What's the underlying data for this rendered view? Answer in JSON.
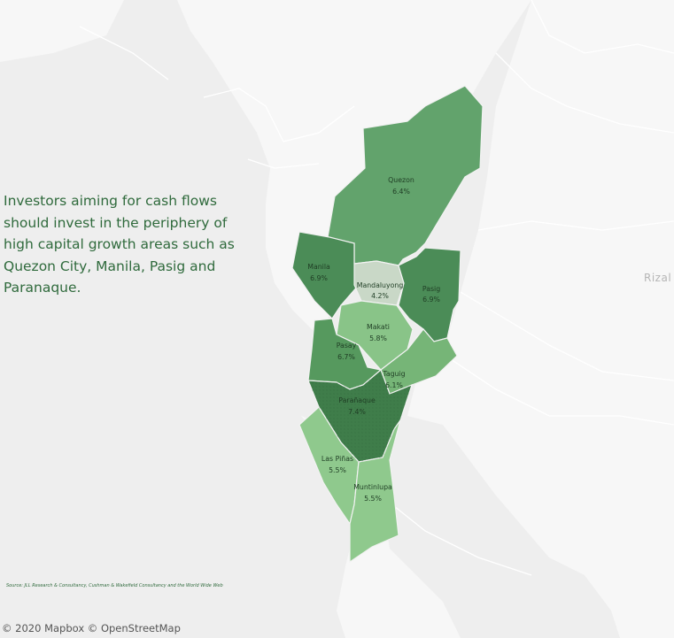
{
  "headline": [
    "Investors aiming for cash flows",
    "should invest in the periphery of",
    "high capital  growth areas such as",
    "Quezon City, Manila, Pasig and",
    "Paranaque."
  ],
  "source": "Source: JLL Research & Consultancy, Cushman & Wakefield Consultancy and the World Wide Web",
  "attribution": "© 2020 Mapbox © OpenStreetMap",
  "place_label": "Rizal",
  "colors": {
    "water": "#eeeeee",
    "land": "#f8f8f8",
    "boundary": "#ffffff",
    "text_green": "#2f6a3c"
  },
  "cities": [
    {
      "id": "quezon",
      "name": "Quezon",
      "value": "6.4%",
      "yield_pct": 6.4,
      "fill": "#62a36c"
    },
    {
      "id": "manila",
      "name": "Manila",
      "value": "6.9%",
      "yield_pct": 6.9,
      "fill": "#4b8c57"
    },
    {
      "id": "mandaluyong",
      "name": "Mandaluyong",
      "value": "4.2%",
      "yield_pct": 4.2,
      "fill": "#c9d8c7"
    },
    {
      "id": "pasig",
      "name": "Pasig",
      "value": "6.9%",
      "yield_pct": 6.9,
      "fill": "#4b8c57"
    },
    {
      "id": "makati",
      "name": "Makati",
      "value": "5.8%",
      "yield_pct": 5.8,
      "fill": "#89c488"
    },
    {
      "id": "pasay",
      "name": "Pasay",
      "value": "6.7%",
      "yield_pct": 6.7,
      "fill": "#56995e"
    },
    {
      "id": "taguig",
      "name": "Taguig",
      "value": "6.1%",
      "yield_pct": 6.1,
      "fill": "#76b577"
    },
    {
      "id": "paranaque",
      "name": "Parañaque",
      "value": "7.4%",
      "yield_pct": 7.4,
      "fill": "#3f7d4a"
    },
    {
      "id": "las-pinas",
      "name": "Las Piñas",
      "value": "5.5%",
      "yield_pct": 5.5,
      "fill": "#8fc98d"
    },
    {
      "id": "muntinlupa",
      "name": "Muntinlupa",
      "value": "5.5%",
      "yield_pct": 5.5,
      "fill": "#8fc98d"
    }
  ]
}
